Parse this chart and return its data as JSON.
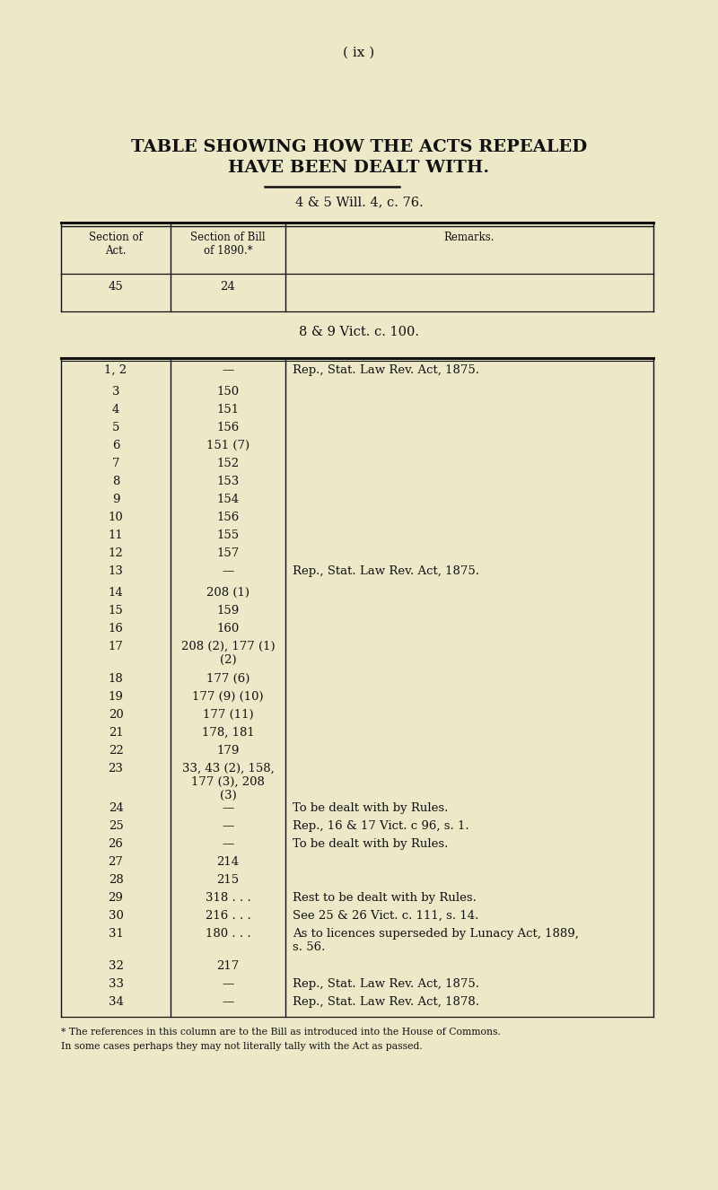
{
  "bg_color": "#ede8c8",
  "text_color": "#111111",
  "page_header": "( ix )",
  "title_line1": "TABLE SHOWING HOW THE ACTS REPEALED",
  "title_line2": "HAVE BEEN DEALT WITH.",
  "subtitle1": "4 & 5 Will. 4, c. 76.",
  "subtitle2": "8 & 9 Vict. c. 100.",
  "second_section_rows": [
    [
      "1, 2",
      "—",
      "Rep., Stat. Law Rev. Act, 1875."
    ],
    [
      "3",
      "150",
      ""
    ],
    [
      "4",
      "151",
      ""
    ],
    [
      "5",
      "156",
      ""
    ],
    [
      "6",
      "151 (7)",
      ""
    ],
    [
      "7",
      "152",
      ""
    ],
    [
      "8",
      "153",
      ""
    ],
    [
      "9",
      "154",
      ""
    ],
    [
      "10",
      "156",
      ""
    ],
    [
      "11",
      "155",
      ""
    ],
    [
      "12",
      "157",
      ""
    ],
    [
      "13",
      "—",
      "Rep., Stat. Law Rev. Act, 1875."
    ],
    [
      "14",
      "208 (1)",
      ""
    ],
    [
      "15",
      "159",
      ""
    ],
    [
      "16",
      "160",
      ""
    ],
    [
      "17",
      "208 (2), 177 (1)\n(2)",
      ""
    ],
    [
      "18",
      "177 (6)",
      ""
    ],
    [
      "19",
      "177 (9) (10)",
      ""
    ],
    [
      "20",
      "177 (11)",
      ""
    ],
    [
      "21",
      "178, 181",
      ""
    ],
    [
      "22",
      "179",
      ""
    ],
    [
      "23",
      "33, 43 (2), 158,\n177 (3), 208\n(3)",
      ""
    ],
    [
      "24",
      "—",
      "To be dealt with by Rules."
    ],
    [
      "25",
      "—",
      "Rep., 16 & 17 Vict. c 96, s. 1."
    ],
    [
      "26",
      "—",
      "To be dealt with by Rules."
    ],
    [
      "27",
      "214",
      ""
    ],
    [
      "28",
      "215",
      ""
    ],
    [
      "29",
      "318 . . .",
      "Rest to be dealt with by Rules."
    ],
    [
      "30",
      "216 . . .",
      "See 25 & 26 Vict. c. 111, s. 14."
    ],
    [
      "31",
      "180 . . .",
      "As to licences superseded by Lunacy Act, 1889,\ns. 56."
    ],
    [
      "32",
      "217",
      ""
    ],
    [
      "33",
      "—",
      "Rep., Stat. Law Rev. Act, 1875."
    ],
    [
      "34",
      "—",
      "Rep., Stat. Law Rev. Act, 1878."
    ]
  ],
  "footnote_line1": "* The references in this column are to the Bill as introduced into the House of Commons.",
  "footnote_line2": "In some cases perhaps they may not literally tally with the Act as passed."
}
